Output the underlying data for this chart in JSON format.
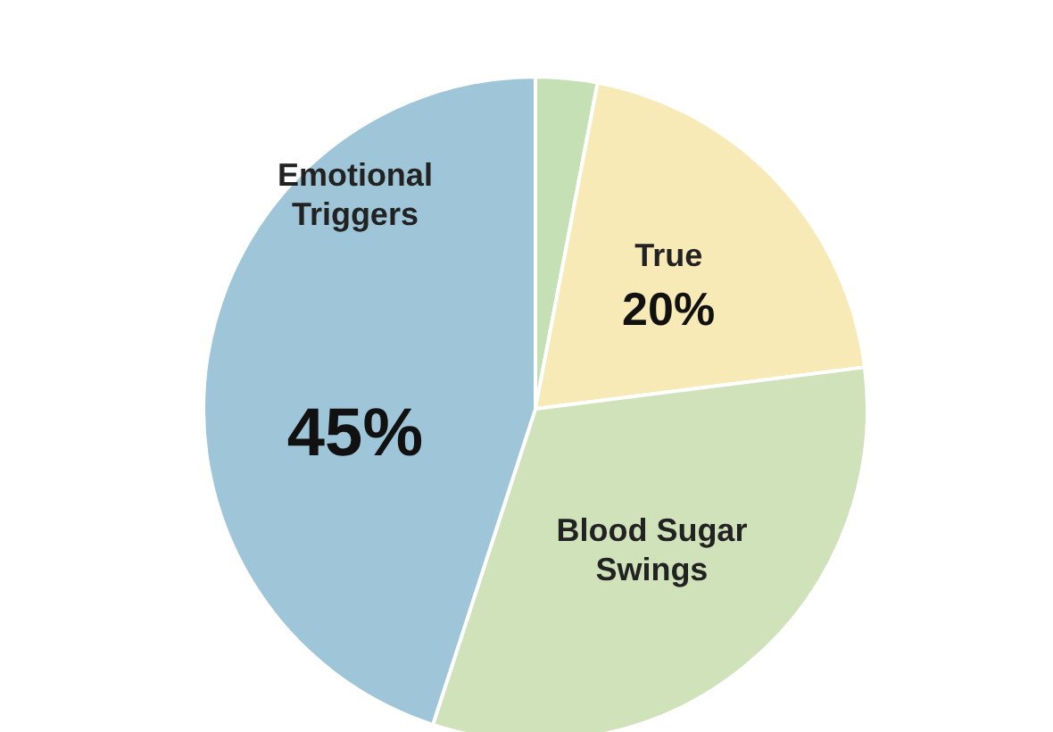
{
  "chart_data": {
    "type": "pie",
    "categories": [
      null,
      "True",
      "Blood Sugar Swings",
      "Emotional Triggers"
    ],
    "values": [
      3,
      20,
      32,
      45
    ],
    "value_labels": [
      null,
      "20%",
      null,
      "45%"
    ],
    "colors": [
      "#c6e0b6",
      "#f8eab6",
      "#cfe2b9",
      "#9fc5d8"
    ]
  }
}
